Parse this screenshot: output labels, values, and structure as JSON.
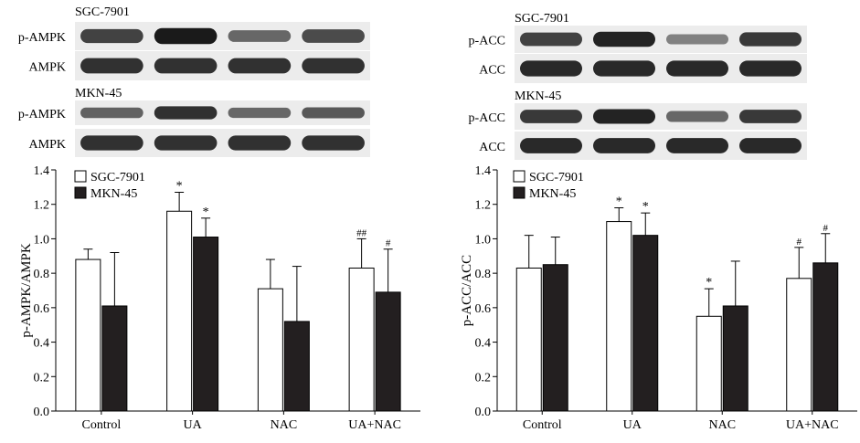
{
  "colors": {
    "series_fill": [
      "#ffffff",
      "#231f20"
    ],
    "stroke": "#000000",
    "blot_background": "#ececec",
    "blot_band": "#1a1a1a"
  },
  "blots": {
    "left": [
      {
        "label": "SGC-7901",
        "rows": [
          {
            "name": "p-AMPK",
            "intensity": [
              0.75,
              1.0,
              0.5,
              0.7
            ]
          },
          {
            "name": "AMPK",
            "intensity": [
              0.85,
              0.85,
              0.85,
              0.85
            ]
          }
        ]
      },
      {
        "label": "MKN-45",
        "rows": [
          {
            "name": "p-AMPK",
            "intensity": [
              0.55,
              0.85,
              0.5,
              0.6
            ]
          },
          {
            "name": "AMPK",
            "intensity": [
              0.85,
              0.85,
              0.85,
              0.85
            ]
          }
        ]
      }
    ],
    "right": [
      {
        "label": "SGC-7901",
        "rows": [
          {
            "name": "p-ACC",
            "intensity": [
              0.75,
              0.95,
              0.35,
              0.8
            ]
          },
          {
            "name": "ACC",
            "intensity": [
              0.9,
              0.9,
              0.9,
              0.9
            ]
          }
        ]
      },
      {
        "label": "MKN-45",
        "rows": [
          {
            "name": "p-ACC",
            "intensity": [
              0.8,
              0.95,
              0.5,
              0.8
            ]
          },
          {
            "name": "ACC",
            "intensity": [
              0.9,
              0.9,
              0.9,
              0.9
            ]
          }
        ]
      }
    ]
  },
  "chart_data": [
    {
      "type": "bar",
      "title": "",
      "xlabel": "",
      "ylabel": "p-AMPK/AMPK",
      "categories": [
        "Control",
        "UA",
        "NAC",
        "UA+NAC"
      ],
      "ylim": [
        0,
        1.4
      ],
      "yticks": [
        "0.0",
        "0.2",
        "0.4",
        "0.6",
        "0.8",
        "1.0",
        "1.2",
        "1.4"
      ],
      "grid": false,
      "legend_position": "top-left",
      "series": [
        {
          "name": "SGC-7901",
          "values": [
            0.88,
            1.16,
            0.71,
            0.83
          ],
          "errors": [
            0.06,
            0.11,
            0.17,
            0.17
          ],
          "annotations": [
            "",
            "*",
            "",
            "##"
          ]
        },
        {
          "name": "MKN-45",
          "values": [
            0.61,
            1.01,
            0.52,
            0.69
          ],
          "errors": [
            0.31,
            0.11,
            0.32,
            0.25
          ],
          "annotations": [
            "",
            "*",
            "",
            "#"
          ]
        }
      ]
    },
    {
      "type": "bar",
      "title": "",
      "xlabel": "",
      "ylabel": "p-ACC/ACC",
      "categories": [
        "Control",
        "UA",
        "NAC",
        "UA+NAC"
      ],
      "ylim": [
        0,
        1.4
      ],
      "yticks": [
        "0.0",
        "0.2",
        "0.4",
        "0.6",
        "0.8",
        "1.0",
        "1.2",
        "1.4"
      ],
      "grid": false,
      "legend_position": "top-left",
      "series": [
        {
          "name": "SGC-7901",
          "values": [
            0.83,
            1.1,
            0.55,
            0.77
          ],
          "errors": [
            0.19,
            0.08,
            0.16,
            0.18
          ],
          "annotations": [
            "",
            "*",
            "*",
            "#"
          ]
        },
        {
          "name": "MKN-45",
          "values": [
            0.85,
            1.02,
            0.61,
            0.86
          ],
          "errors": [
            0.16,
            0.13,
            0.26,
            0.17
          ],
          "annotations": [
            "",
            "*",
            "",
            "#"
          ]
        }
      ]
    }
  ]
}
